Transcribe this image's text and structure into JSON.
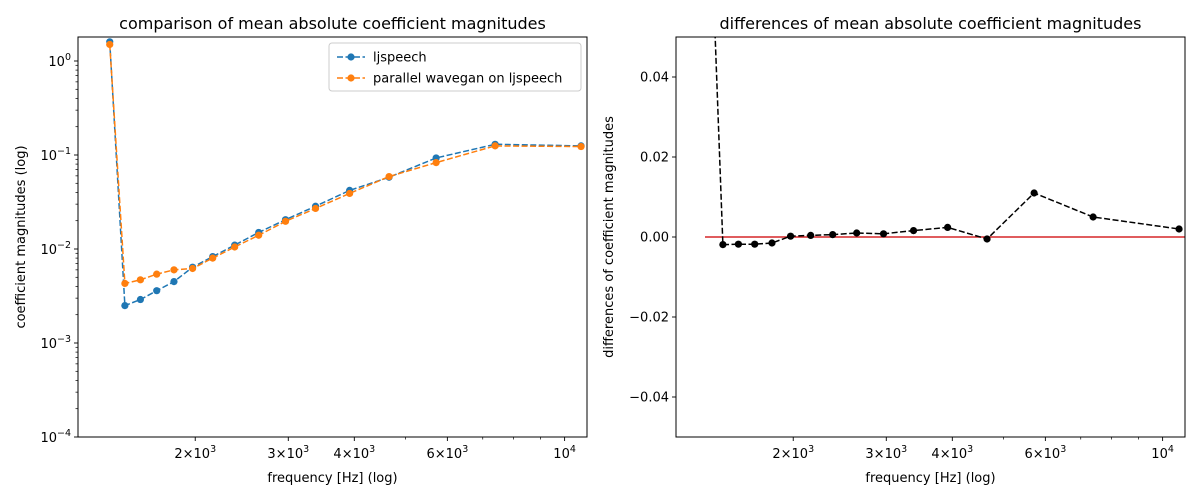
{
  "chart_data": [
    {
      "type": "line",
      "title": "comparison of mean absolute coefficient magnitudes",
      "xlabel": "frequency [Hz] (log)",
      "ylabel": "coefficient magnitudes (log)",
      "xscale": "log",
      "yscale": "log",
      "xlim": [
        1200,
        11025
      ],
      "ylim": [
        0.0001,
        1.8
      ],
      "xticks": [
        {
          "base": "2",
          "exp": "3"
        },
        {
          "base": "3",
          "exp": "3"
        },
        {
          "base": "4",
          "exp": "3"
        },
        {
          "base": "6",
          "exp": "3"
        },
        {
          "base": "10",
          "exp": "4"
        }
      ],
      "yticks": [
        {
          "base": "10",
          "exp": "0"
        },
        {
          "base": "10",
          "exp": "−1"
        },
        {
          "base": "10",
          "exp": "−2"
        },
        {
          "base": "10",
          "exp": "−3"
        },
        {
          "base": "10",
          "exp": "−4"
        }
      ],
      "legend_position": "top-right",
      "grid": false,
      "x": [
        1378,
        1472,
        1575,
        1691,
        1823,
        1977,
        2158,
        2375,
        2637,
        2964,
        3378,
        3919,
        4654,
        5713,
        7388,
        10744
      ],
      "series": [
        {
          "name": "ljspeech",
          "color": "#1f77b4",
          "values": [
            1.6,
            0.0025,
            0.0029,
            0.0036,
            0.0045,
            0.0064,
            0.0083,
            0.011,
            0.015,
            0.0205,
            0.0285,
            0.042,
            0.058,
            0.093,
            0.13,
            0.125
          ]
        },
        {
          "name": "parallel wavegan on ljspeech",
          "color": "#ff7f0e",
          "values": [
            1.5,
            0.0043,
            0.0047,
            0.0054,
            0.006,
            0.0062,
            0.008,
            0.0105,
            0.014,
            0.0197,
            0.027,
            0.039,
            0.059,
            0.083,
            0.125,
            0.123
          ]
        }
      ]
    },
    {
      "type": "line",
      "title": "differences of mean absolute coefficient magnitudes",
      "xlabel": "frequency [Hz] (log)",
      "ylabel": "differences of coefficient magnitudes",
      "xscale": "log",
      "yscale": "linear",
      "xlim": [
        1200,
        11025
      ],
      "ylim": [
        -0.05,
        0.05
      ],
      "xticks": [
        {
          "base": "2",
          "exp": "3"
        },
        {
          "base": "3",
          "exp": "3"
        },
        {
          "base": "4",
          "exp": "3"
        },
        {
          "base": "6",
          "exp": "3"
        },
        {
          "base": "10",
          "exp": "4"
        }
      ],
      "yticks": [
        "0.04",
        "0.02",
        "0.00",
        "−0.02",
        "−0.04"
      ],
      "grid": false,
      "reference_line": {
        "y": 0,
        "color": "#d62728"
      },
      "x": [
        1378,
        1472,
        1575,
        1691,
        1823,
        1977,
        2158,
        2375,
        2637,
        2964,
        3378,
        3919,
        4654,
        5713,
        7388,
        10744
      ],
      "series": [
        {
          "color": "#000000",
          "values": [
            0.1,
            -0.0019,
            -0.0018,
            -0.0018,
            -0.0015,
            0.0002,
            0.0004,
            0.0006,
            0.001,
            0.0008,
            0.0016,
            0.0024,
            -0.0005,
            0.011,
            0.005,
            0.002
          ]
        }
      ]
    }
  ]
}
